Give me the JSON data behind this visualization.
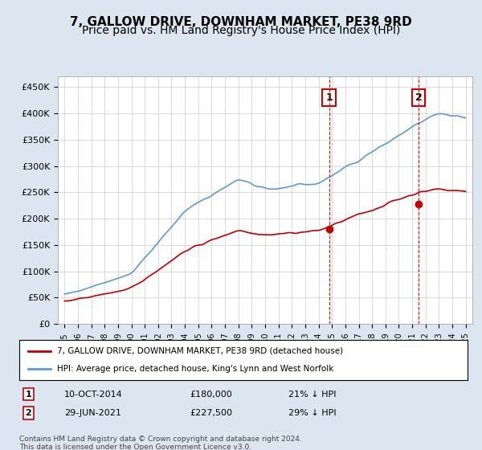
{
  "title": "7, GALLOW DRIVE, DOWNHAM MARKET, PE38 9RD",
  "subtitle": "Price paid vs. HM Land Registry's House Price Index (HPI)",
  "ylabel_ticks": [
    "£0",
    "£50K",
    "£100K",
    "£150K",
    "£200K",
    "£250K",
    "£300K",
    "£350K",
    "£400K",
    "£450K"
  ],
  "ytick_values": [
    0,
    50000,
    100000,
    150000,
    200000,
    250000,
    300000,
    350000,
    400000,
    450000
  ],
  "ylim": [
    0,
    470000
  ],
  "transaction1_date": "10-OCT-2014",
  "transaction1_price": 180000,
  "transaction1_label": "21% ↓ HPI",
  "transaction1_x": 2014.78,
  "transaction2_date": "29-JUN-2021",
  "transaction2_price": 227500,
  "transaction2_label": "29% ↓ HPI",
  "transaction2_x": 2021.49,
  "legend_line1": "7, GALLOW DRIVE, DOWNHAM MARKET, PE38 9RD (detached house)",
  "legend_line2": "HPI: Average price, detached house, King's Lynn and West Norfolk",
  "footer": "Contains HM Land Registry data © Crown copyright and database right 2024.\nThis data is licensed under the Open Government Licence v3.0.",
  "hpi_color": "#5b9bd5",
  "price_color": "#c00000",
  "bg_color": "#dce6f1",
  "plot_bg": "#ffffff",
  "vline_color": "#ff0000",
  "title_fontsize": 11,
  "subtitle_fontsize": 10
}
